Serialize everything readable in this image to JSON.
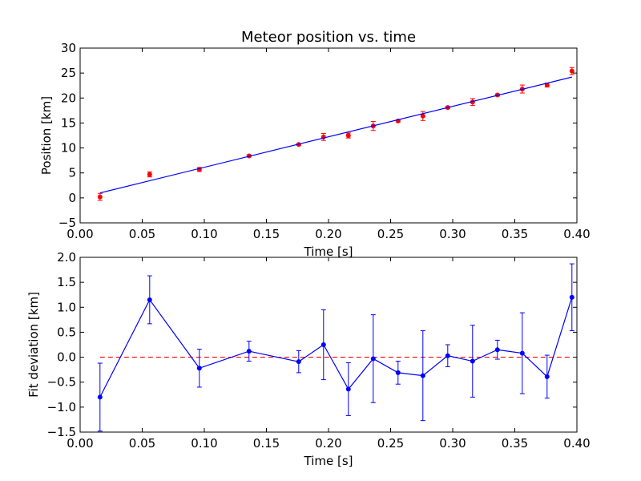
{
  "chart_data": [
    {
      "type": "scatter",
      "title": "Meteor position vs. time",
      "xlabel": "Time [s]",
      "ylabel": "Position [km]",
      "xlim": [
        0.0,
        0.4
      ],
      "ylim": [
        -5,
        30
      ],
      "xticks": [
        "0.00",
        "0.05",
        "0.10",
        "0.15",
        "0.20",
        "0.25",
        "0.30",
        "0.35",
        "0.40"
      ],
      "yticks": [
        "−5",
        "0",
        "5",
        "10",
        "15",
        "20",
        "25",
        "30"
      ],
      "grid": false,
      "series": [
        {
          "kind": "errorbar",
          "color": "#ff0000",
          "x": [
            0.016,
            0.056,
            0.096,
            0.136,
            0.176,
            0.196,
            0.216,
            0.236,
            0.256,
            0.276,
            0.296,
            0.316,
            0.336,
            0.356,
            0.376,
            0.396
          ],
          "y": [
            0.2,
            4.7,
            5.7,
            8.4,
            10.7,
            12.2,
            12.5,
            14.4,
            15.4,
            16.4,
            18.1,
            19.2,
            20.6,
            21.8,
            22.6,
            25.4
          ],
          "yerr": [
            0.7,
            0.5,
            0.4,
            0.2,
            0.2,
            0.7,
            0.5,
            0.9,
            0.2,
            0.9,
            0.2,
            0.7,
            0.2,
            0.8,
            0.4,
            0.7
          ]
        },
        {
          "kind": "line",
          "color": "#0000ff",
          "x": [
            0.016,
            0.396
          ],
          "y": [
            1.0,
            24.2
          ]
        }
      ]
    },
    {
      "type": "line",
      "title": "",
      "xlabel": "Time [s]",
      "ylabel": "Fit deviation [km]",
      "xlim": [
        0.0,
        0.4
      ],
      "ylim": [
        -1.5,
        2.0
      ],
      "xticks": [
        "0.00",
        "0.05",
        "0.10",
        "0.15",
        "0.20",
        "0.25",
        "0.30",
        "0.35",
        "0.40"
      ],
      "yticks": [
        "−1.5",
        "−1.0",
        "−0.5",
        "0.0",
        "0.5",
        "1.0",
        "1.5",
        "2.0"
      ],
      "grid": false,
      "reference_line": {
        "y": 0.0,
        "color": "#ff0000",
        "style": "dashed"
      },
      "series": [
        {
          "kind": "errorbar-line",
          "color": "#0000ff",
          "x": [
            0.016,
            0.056,
            0.096,
            0.136,
            0.176,
            0.196,
            0.216,
            0.236,
            0.256,
            0.276,
            0.296,
            0.316,
            0.336,
            0.356,
            0.376,
            0.396
          ],
          "y": [
            -0.8,
            1.15,
            -0.22,
            0.12,
            -0.09,
            0.25,
            -0.64,
            -0.03,
            -0.31,
            -0.37,
            0.03,
            -0.08,
            0.15,
            0.08,
            -0.39,
            1.2
          ],
          "yerr": [
            0.68,
            0.48,
            0.38,
            0.2,
            0.22,
            0.7,
            0.53,
            0.88,
            0.23,
            0.9,
            0.22,
            0.72,
            0.19,
            0.81,
            0.43,
            0.67
          ]
        }
      ]
    }
  ]
}
